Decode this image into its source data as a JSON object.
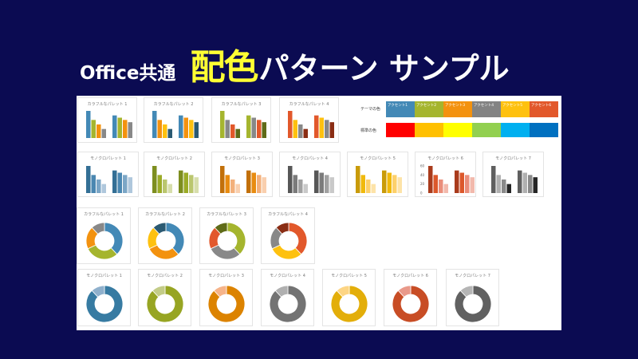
{
  "title": {
    "part1": "Office共通",
    "part2": "配色",
    "part3": "パターン サンプル"
  },
  "bar_data": {
    "group1": [
      60,
      40,
      30,
      20
    ],
    "group2": [
      50,
      45,
      40,
      35
    ],
    "axis_ticks": [
      "60",
      "40",
      "20",
      "0"
    ]
  },
  "donut_colorful_values": [
    38,
    30,
    20,
    12
  ],
  "donut_mono_values": [
    88,
    12
  ],
  "colorful_palettes": [
    {
      "name": "カラフルなパレット 1",
      "colors": [
        "#4389b6",
        "#a5b52e",
        "#f3920f",
        "#888888"
      ]
    },
    {
      "name": "カラフルなパレット 2",
      "colors": [
        "#4389b6",
        "#f3920f",
        "#fec10f",
        "#2b5a72"
      ]
    },
    {
      "name": "カラフルなパレット 3",
      "colors": [
        "#a5b52e",
        "#888888",
        "#e2582b",
        "#5f6b18"
      ]
    },
    {
      "name": "カラフルなパレット 4",
      "colors": [
        "#e2582b",
        "#fec10f",
        "#888888",
        "#8a2d14"
      ]
    }
  ],
  "mono_palettes": [
    {
      "name": "モノクロパレット 1",
      "colors": [
        "#336f95",
        "#4a87b1",
        "#7ba6c6",
        "#afc7dc"
      ]
    },
    {
      "name": "モノクロパレット 2",
      "colors": [
        "#7d8e1f",
        "#9bab27",
        "#bac66e",
        "#d7deac"
      ]
    },
    {
      "name": "モノクロパレット 3",
      "colors": [
        "#c2700a",
        "#e88b10",
        "#f3b07b",
        "#f9cfae"
      ]
    },
    {
      "name": "モノクロパレット 4",
      "colors": [
        "#575757",
        "#7b7b7b",
        "#a1a1a1",
        "#c9c9c9"
      ]
    },
    {
      "name": "モノクロパレット 5",
      "colors": [
        "#c99b0a",
        "#f0b90c",
        "#fdd06a",
        "#fde3a8"
      ]
    },
    {
      "name": "モノクロパレット 6",
      "colors": [
        "#a93b1c",
        "#dc582b",
        "#ea8e7b",
        "#f2b9ac"
      ]
    },
    {
      "name": "モノクロパレット 7",
      "colors": [
        "#5f5f5f",
        "#b0b0b0",
        "#8a8a8a",
        "#262626"
      ]
    }
  ],
  "mono_donut_colors": [
    [
      "#377ba2",
      "#8fb0cc"
    ],
    [
      "#97a523",
      "#c3cc88"
    ],
    [
      "#dc8300",
      "#f6b48a"
    ],
    [
      "#737373",
      "#b0b0b0"
    ],
    [
      "#e3ae0a",
      "#fdd584"
    ],
    [
      "#c84d25",
      "#e9998a"
    ],
    [
      "#616161",
      "#b5b5b5"
    ]
  ],
  "legend": {
    "theme_label": "テーマの色",
    "standard_label": "標準の色",
    "accents": [
      {
        "label": "アクセント1",
        "color": "#4389b6"
      },
      {
        "label": "アクセント2",
        "color": "#a5b52e"
      },
      {
        "label": "アクセント3",
        "color": "#f3920f"
      },
      {
        "label": "アクセント4",
        "color": "#838383"
      },
      {
        "label": "アクセント5",
        "color": "#fec10f"
      },
      {
        "label": "アクセント6",
        "color": "#e2582b"
      }
    ],
    "standard": [
      "#ff0000",
      "#ffc000",
      "#ffff00",
      "#92d050",
      "#00b0f0",
      "#0070c0"
    ]
  }
}
